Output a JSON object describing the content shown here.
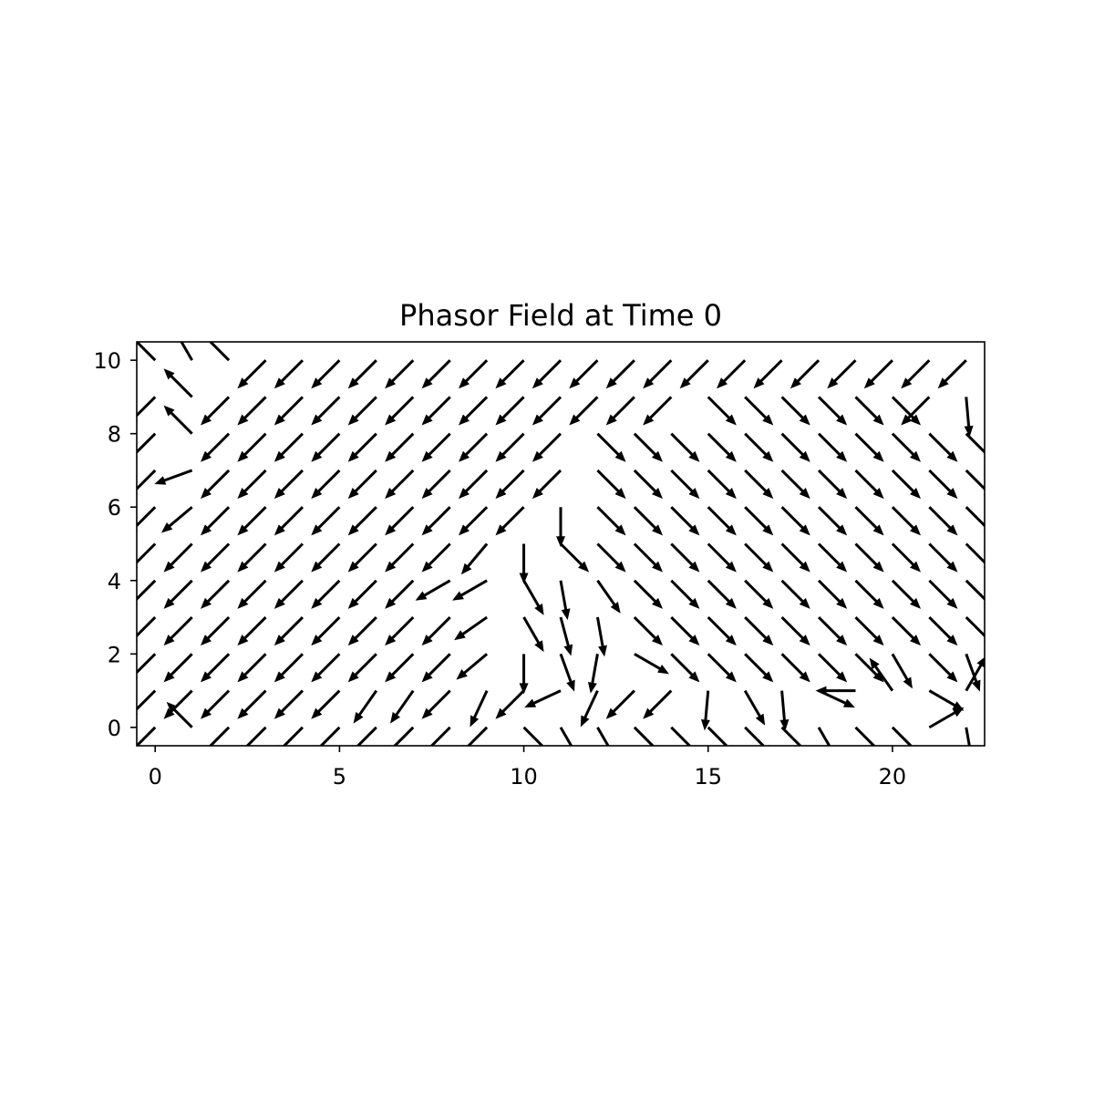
{
  "chart_data": {
    "type": "quiver",
    "title": "Phasor Field at Time 0",
    "xlabel": "",
    "ylabel": "",
    "xlim": [
      -0.5,
      22.5
    ],
    "ylim": [
      -0.5,
      10.5
    ],
    "grid": false,
    "x_ticks": [
      0,
      5,
      10,
      15,
      20
    ],
    "x_tick_labels": [
      "0",
      "5",
      "10",
      "15",
      "20"
    ],
    "y_ticks": [
      0,
      2,
      4,
      6,
      8,
      10
    ],
    "y_tick_labels": [
      "0",
      "2",
      "4",
      "6",
      "8",
      "10"
    ],
    "arrow_color": "#000000",
    "columns": 23,
    "rows": 11,
    "angles_deg": [
      [
        225,
        135,
        225,
        225,
        225,
        225,
        225,
        225,
        225,
        225,
        315,
        300,
        300,
        315,
        315,
        315,
        315,
        315,
        300,
        315,
        315,
        30,
        280
      ],
      [
        225,
        225,
        225,
        225,
        225,
        225,
        235,
        235,
        225,
        245,
        225,
        205,
        245,
        225,
        225,
        265,
        300,
        275,
        335,
        180,
        125,
        330,
        60
      ],
      [
        225,
        225,
        225,
        225,
        225,
        225,
        225,
        225,
        225,
        220,
        270,
        290,
        260,
        330,
        315,
        315,
        315,
        315,
        315,
        315,
        300,
        315,
        290
      ],
      [
        225,
        225,
        225,
        225,
        225,
        225,
        225,
        225,
        225,
        215,
        300,
        285,
        280,
        315,
        315,
        315,
        315,
        315,
        315,
        315,
        315,
        315,
        315
      ],
      [
        225,
        225,
        225,
        225,
        225,
        225,
        225,
        225,
        210,
        210,
        300,
        280,
        305,
        315,
        315,
        315,
        315,
        315,
        315,
        315,
        315,
        315,
        315
      ],
      [
        225,
        225,
        225,
        225,
        225,
        225,
        225,
        225,
        225,
        230,
        270,
        315,
        315,
        315,
        315,
        315,
        315,
        315,
        315,
        315,
        315,
        315,
        315
      ],
      [
        225,
        220,
        225,
        225,
        225,
        225,
        225,
        225,
        225,
        225,
        225,
        270,
        315,
        315,
        315,
        315,
        315,
        315,
        315,
        315,
        315,
        315,
        315
      ],
      [
        225,
        200,
        225,
        225,
        225,
        225,
        225,
        225,
        225,
        225,
        225,
        225,
        315,
        315,
        315,
        315,
        315,
        315,
        315,
        315,
        315,
        315,
        315
      ],
      [
        225,
        135,
        225,
        225,
        225,
        225,
        225,
        225,
        225,
        225,
        225,
        225,
        315,
        315,
        315,
        315,
        315,
        315,
        315,
        315,
        315,
        315,
        315
      ],
      [
        225,
        135,
        225,
        225,
        225,
        225,
        225,
        225,
        225,
        225,
        225,
        225,
        225,
        225,
        225,
        315,
        315,
        315,
        315,
        315,
        315,
        225,
        275
      ],
      [
        135,
        120,
        135,
        225,
        225,
        225,
        225,
        225,
        225,
        225,
        225,
        225,
        225,
        225,
        225,
        225,
        225,
        225,
        225,
        225,
        225,
        225,
        225
      ]
    ],
    "magnitudes": [
      [
        1.0,
        0.9,
        1.0,
        1.0,
        1.0,
        1.0,
        1.0,
        1.0,
        1.0,
        1.0,
        1.0,
        1.0,
        1.0,
        1.0,
        1.0,
        1.0,
        1.0,
        1.0,
        1.0,
        1.0,
        1.0,
        1.0,
        1.0
      ],
      [
        1.0,
        1.0,
        1.0,
        1.0,
        1.0,
        1.0,
        1.0,
        1.0,
        1.0,
        1.0,
        1.0,
        1.0,
        1.0,
        1.0,
        1.0,
        1.0,
        1.0,
        1.0,
        1.0,
        1.0,
        1.0,
        1.0,
        1.0
      ],
      [
        1.0,
        1.0,
        1.0,
        1.0,
        1.0,
        1.0,
        1.0,
        1.0,
        1.0,
        1.0,
        1.0,
        1.0,
        1.0,
        1.0,
        1.0,
        1.0,
        1.0,
        1.0,
        1.0,
        1.0,
        1.0,
        1.0,
        1.0
      ],
      [
        1.0,
        1.0,
        1.0,
        1.0,
        1.0,
        1.0,
        1.0,
        1.0,
        1.0,
        1.0,
        1.0,
        1.0,
        1.0,
        1.0,
        1.0,
        1.0,
        1.0,
        1.0,
        1.0,
        1.0,
        1.0,
        1.0,
        1.0
      ],
      [
        1.0,
        1.0,
        1.0,
        1.0,
        1.0,
        1.0,
        1.0,
        1.0,
        1.0,
        1.0,
        1.0,
        1.0,
        1.0,
        1.0,
        1.0,
        1.0,
        1.0,
        1.0,
        1.0,
        1.0,
        1.0,
        1.0,
        1.0
      ],
      [
        1.0,
        1.0,
        1.0,
        1.0,
        1.0,
        1.0,
        1.0,
        1.0,
        1.0,
        1.0,
        1.0,
        1.0,
        1.0,
        1.0,
        1.0,
        1.0,
        1.0,
        1.0,
        1.0,
        1.0,
        1.0,
        1.0,
        1.0
      ],
      [
        1.0,
        1.0,
        1.0,
        1.0,
        1.0,
        1.0,
        1.0,
        1.0,
        1.0,
        1.0,
        1.0,
        1.0,
        1.0,
        1.0,
        1.0,
        1.0,
        1.0,
        1.0,
        1.0,
        1.0,
        1.0,
        1.0,
        1.0
      ],
      [
        1.0,
        1.0,
        1.0,
        1.0,
        1.0,
        1.0,
        1.0,
        1.0,
        1.0,
        1.0,
        1.0,
        1.0,
        1.0,
        1.0,
        1.0,
        1.0,
        1.0,
        1.0,
        1.0,
        1.0,
        1.0,
        1.0,
        1.0
      ],
      [
        1.0,
        1.0,
        1.0,
        1.0,
        1.0,
        1.0,
        1.0,
        1.0,
        1.0,
        1.0,
        1.0,
        1.0,
        1.0,
        1.0,
        1.0,
        1.0,
        1.0,
        1.0,
        1.0,
        1.0,
        1.0,
        1.0,
        1.0
      ],
      [
        1.0,
        1.0,
        1.0,
        1.0,
        1.0,
        1.0,
        1.0,
        1.0,
        1.0,
        1.0,
        1.0,
        1.0,
        1.0,
        1.0,
        1.0,
        1.0,
        1.0,
        1.0,
        1.0,
        1.0,
        1.0,
        1.0,
        1.0
      ],
      [
        1.0,
        1.0,
        1.0,
        1.0,
        1.0,
        1.0,
        1.0,
        1.0,
        1.0,
        1.0,
        1.0,
        1.0,
        1.0,
        1.0,
        1.0,
        1.0,
        1.0,
        1.0,
        1.0,
        1.0,
        1.0,
        1.0,
        1.0
      ]
    ]
  }
}
